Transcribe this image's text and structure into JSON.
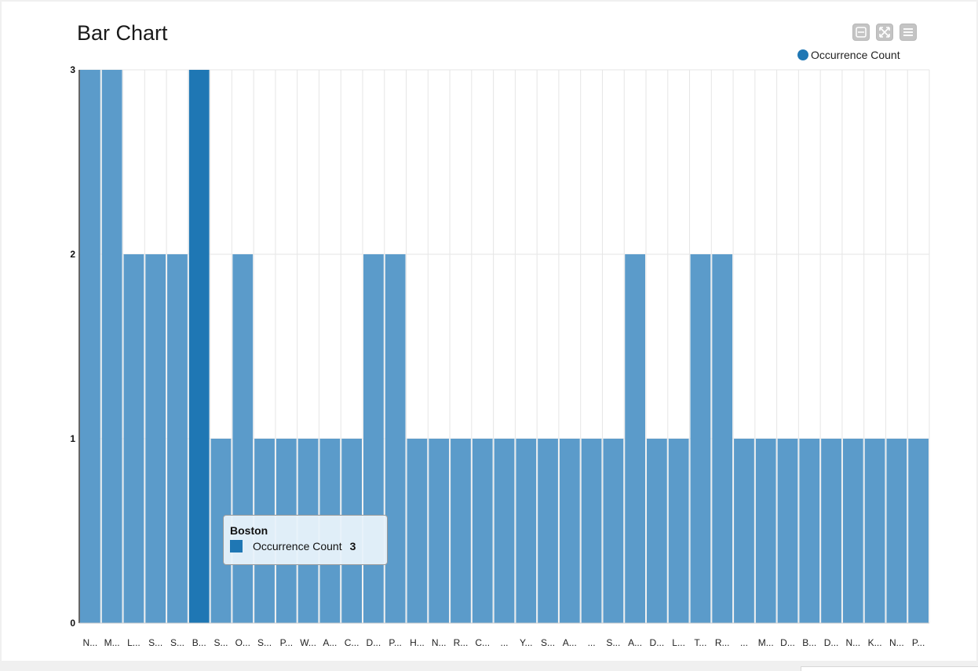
{
  "chart_data": {
    "type": "bar",
    "title": "Bar Chart",
    "xlabel": "",
    "ylabel": "",
    "ylim": [
      0,
      3
    ],
    "yticks": [
      0,
      1,
      2,
      3
    ],
    "legend": {
      "entries": [
        "Occurrence Count"
      ],
      "placement": "top-right"
    },
    "categories": [
      "N...",
      "M...",
      "L...",
      "S...",
      "S...",
      "B...",
      "S...",
      "O...",
      "S...",
      "P...",
      "W...",
      "A...",
      "C...",
      "D...",
      "P...",
      "H...",
      "N...",
      "R...",
      "C...",
      "...",
      "Y...",
      "S...",
      "A...",
      "...",
      "S...",
      "A...",
      "D...",
      "L...",
      "T...",
      "R...",
      "...",
      "M...",
      "D...",
      "B...",
      "D...",
      "N...",
      "K...",
      "N...",
      "P..."
    ],
    "series": [
      {
        "name": "Occurrence Count",
        "values": [
          3,
          3,
          2,
          2,
          2,
          3,
          1,
          2,
          1,
          1,
          1,
          1,
          1,
          2,
          2,
          1,
          1,
          1,
          1,
          1,
          1,
          1,
          1,
          1,
          1,
          2,
          1,
          1,
          2,
          2,
          1,
          1,
          1,
          1,
          1,
          1,
          1,
          1,
          1
        ]
      }
    ],
    "highlighted_index": 5,
    "colors": {
      "bar": "#5b9bca",
      "bar_highlight": "#1f77b4",
      "grid": "#e6e6e6"
    },
    "grid": true
  },
  "tooltip": {
    "title": "Boston",
    "series_name": "Occurrence Count",
    "value": "3"
  },
  "toolbar": {
    "icons": [
      "zoom-out-icon",
      "fullscreen-icon",
      "menu-icon"
    ]
  }
}
